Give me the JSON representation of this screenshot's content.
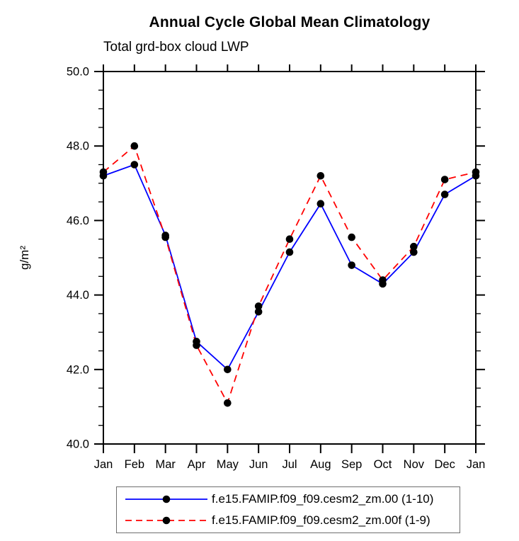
{
  "header": {
    "title": "Annual Cycle Global Mean Climatology",
    "subtitle": "Total grd-box cloud LWP"
  },
  "chart_data": {
    "type": "line",
    "title": "Annual Cycle Global Mean Climatology",
    "subtitle": "Total grd-box cloud LWP",
    "xlabel": "",
    "ylabel": "g/m²",
    "ylim": [
      40.0,
      50.0
    ],
    "ytick_major_step": 2.0,
    "ytick_minor_step": 0.5,
    "ytick_labels": [
      "40.0",
      "42.0",
      "44.0",
      "46.0",
      "48.0",
      "50.0"
    ],
    "grid": false,
    "legend_position": "bottom",
    "axis_color": "#000000",
    "marker_color": "#000000",
    "categories": [
      "Jan",
      "Feb",
      "Mar",
      "Apr",
      "May",
      "Jun",
      "Jul",
      "Aug",
      "Sep",
      "Oct",
      "Nov",
      "Dec",
      "Jan"
    ],
    "series": [
      {
        "name": "f.e15.FAMIP.f09_f09.cesm2_zm.00 (1-10)",
        "color": "#0000ff",
        "style": "solid",
        "marker": "filled-circle",
        "values": [
          47.2,
          47.5,
          45.6,
          42.75,
          42.0,
          43.55,
          45.15,
          46.45,
          44.8,
          44.3,
          45.15,
          46.7,
          47.2
        ]
      },
      {
        "name": "f.e15.FAMIP.f09_f09.cesm2_zm.00f (1-9)",
        "color": "#ff0000",
        "style": "dashed",
        "marker": "filled-circle",
        "values": [
          47.3,
          48.0,
          45.55,
          42.65,
          41.1,
          43.7,
          45.5,
          47.2,
          45.55,
          44.4,
          45.3,
          47.1,
          47.3
        ]
      }
    ]
  }
}
